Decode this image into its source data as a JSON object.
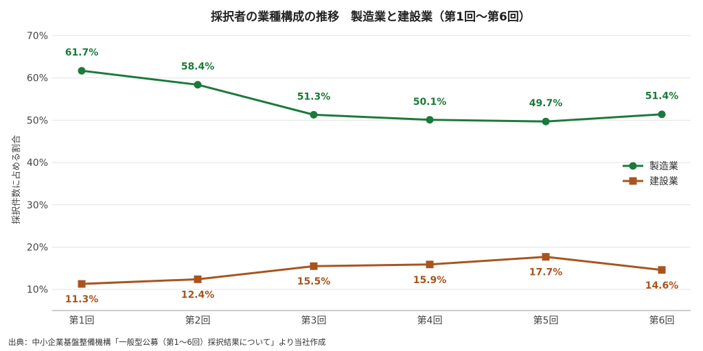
{
  "chart_data": {
    "type": "line",
    "title": "採択者の業種構成の推移　製造業と建設業（第1回〜第6回）",
    "categories": [
      "第1回",
      "第2回",
      "第3回",
      "第4回",
      "第5回",
      "第6回"
    ],
    "ylabel": "採択件数に占める割合",
    "ylim": [
      5,
      70
    ],
    "yticks": [
      "10%",
      "20%",
      "30%",
      "40%",
      "50%",
      "60%",
      "70%"
    ],
    "ytick_values": [
      10,
      20,
      30,
      40,
      50,
      60,
      70
    ],
    "grid": true,
    "legend_position": "right",
    "series": [
      {
        "name": "製造業",
        "color": "#1b7a3a",
        "marker": "circle",
        "values": [
          61.7,
          58.4,
          51.3,
          50.1,
          49.7,
          51.4
        ],
        "labels": [
          "61.7%",
          "58.4%",
          "51.3%",
          "50.1%",
          "49.7%",
          "51.4%"
        ]
      },
      {
        "name": "建設業",
        "color": "#a8541c",
        "marker": "square",
        "values": [
          11.3,
          12.4,
          15.5,
          15.9,
          17.7,
          14.6
        ],
        "labels": [
          "11.3%",
          "12.4%",
          "15.5%",
          "15.9%",
          "17.7%",
          "14.6%"
        ]
      }
    ]
  },
  "source": "出典：中小企業基盤整備機構「一般型公募（第1〜6回）採択結果について」より当社作成"
}
